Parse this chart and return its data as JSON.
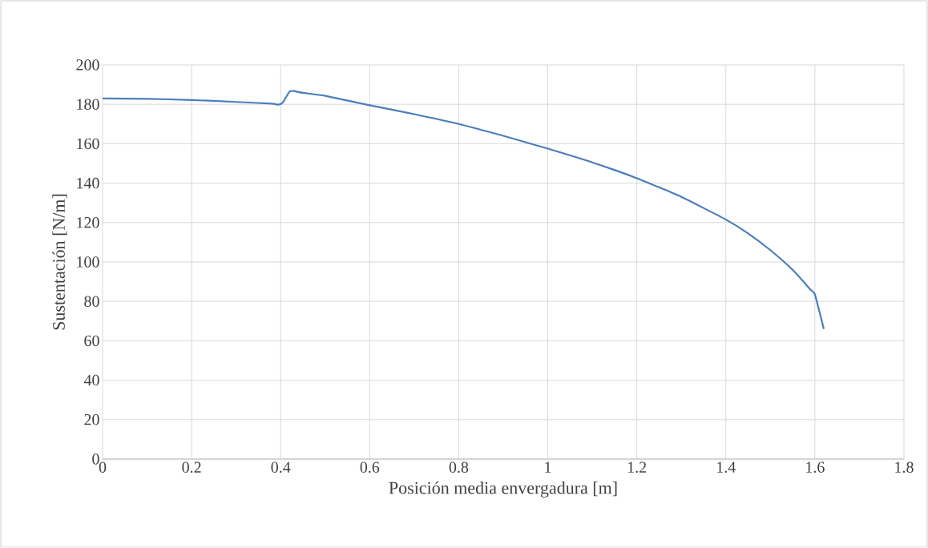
{
  "chart_data": {
    "type": "line",
    "xlabel": "Posición media envergadura [m]",
    "ylabel": "Sustentación [N/m]",
    "x": [
      0,
      0.1,
      0.2,
      0.3,
      0.38,
      0.395,
      0.405,
      0.42,
      0.43,
      0.45,
      0.5,
      0.6,
      0.7,
      0.8,
      0.9,
      1.0,
      1.1,
      1.2,
      1.3,
      1.4,
      1.45,
      1.5,
      1.55,
      1.59,
      1.6,
      1.62
    ],
    "series": [
      {
        "color": "#4a7ebb",
        "values": [
          183,
          182.8,
          182.2,
          181.2,
          180.3,
          179.8,
          181,
          186.5,
          186.7,
          185.8,
          184.3,
          179.5,
          175,
          170,
          164,
          157.5,
          150.5,
          142.5,
          133,
          121.5,
          114.5,
          106,
          96,
          86,
          83.5,
          66
        ]
      }
    ],
    "xlim": [
      0,
      1.8
    ],
    "xticks": [
      0,
      0.2,
      0.4,
      0.6,
      0.8,
      1,
      1.2,
      1.4,
      1.6,
      1.8
    ],
    "ylim": [
      0,
      200
    ],
    "yticks": [
      0,
      20,
      40,
      60,
      80,
      100,
      120,
      140,
      160,
      180,
      200
    ],
    "grid": true,
    "marker": "none",
    "line_style": "solid"
  }
}
